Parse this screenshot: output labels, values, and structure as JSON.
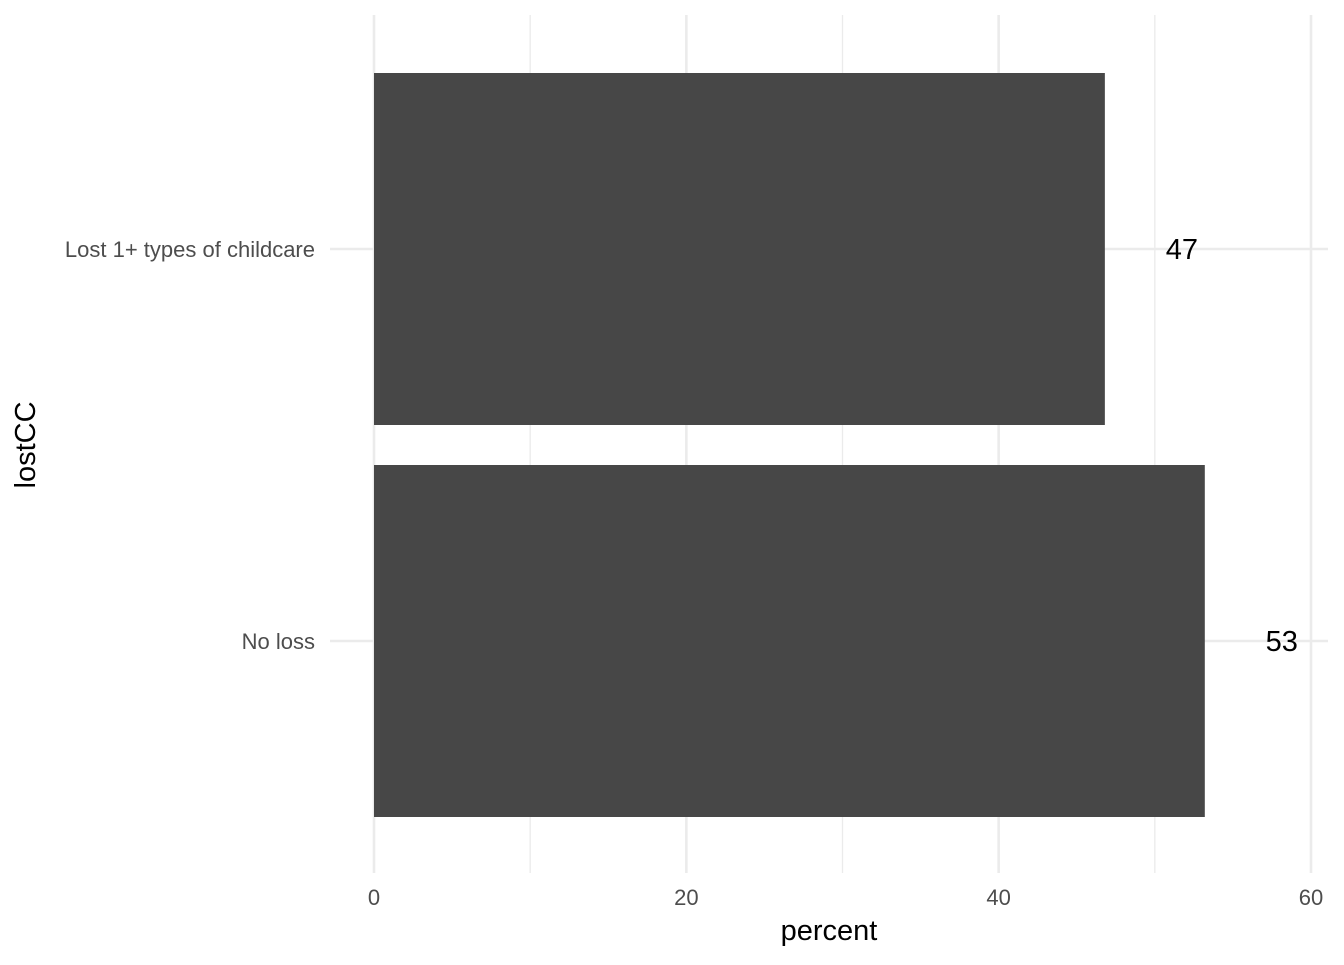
{
  "chart_data": {
    "type": "bar",
    "orientation": "horizontal",
    "title": "",
    "xlabel": "percent",
    "ylabel": "lostCC",
    "categories": [
      "Lost 1+ types of childcare",
      "No loss"
    ],
    "values": [
      46.8,
      53.2
    ],
    "data_labels": [
      "47",
      "53"
    ],
    "xlim": [
      0,
      60
    ],
    "x_ticks": [
      0,
      20,
      40,
      60
    ],
    "x_tick_labels": [
      "0",
      "20",
      "40",
      "60"
    ],
    "grid": true,
    "legend": "none",
    "colors": {
      "bar": "#474747",
      "grid": "#ebebeb",
      "tick_text": "#4d4d4d",
      "label_text": "#000000"
    }
  }
}
